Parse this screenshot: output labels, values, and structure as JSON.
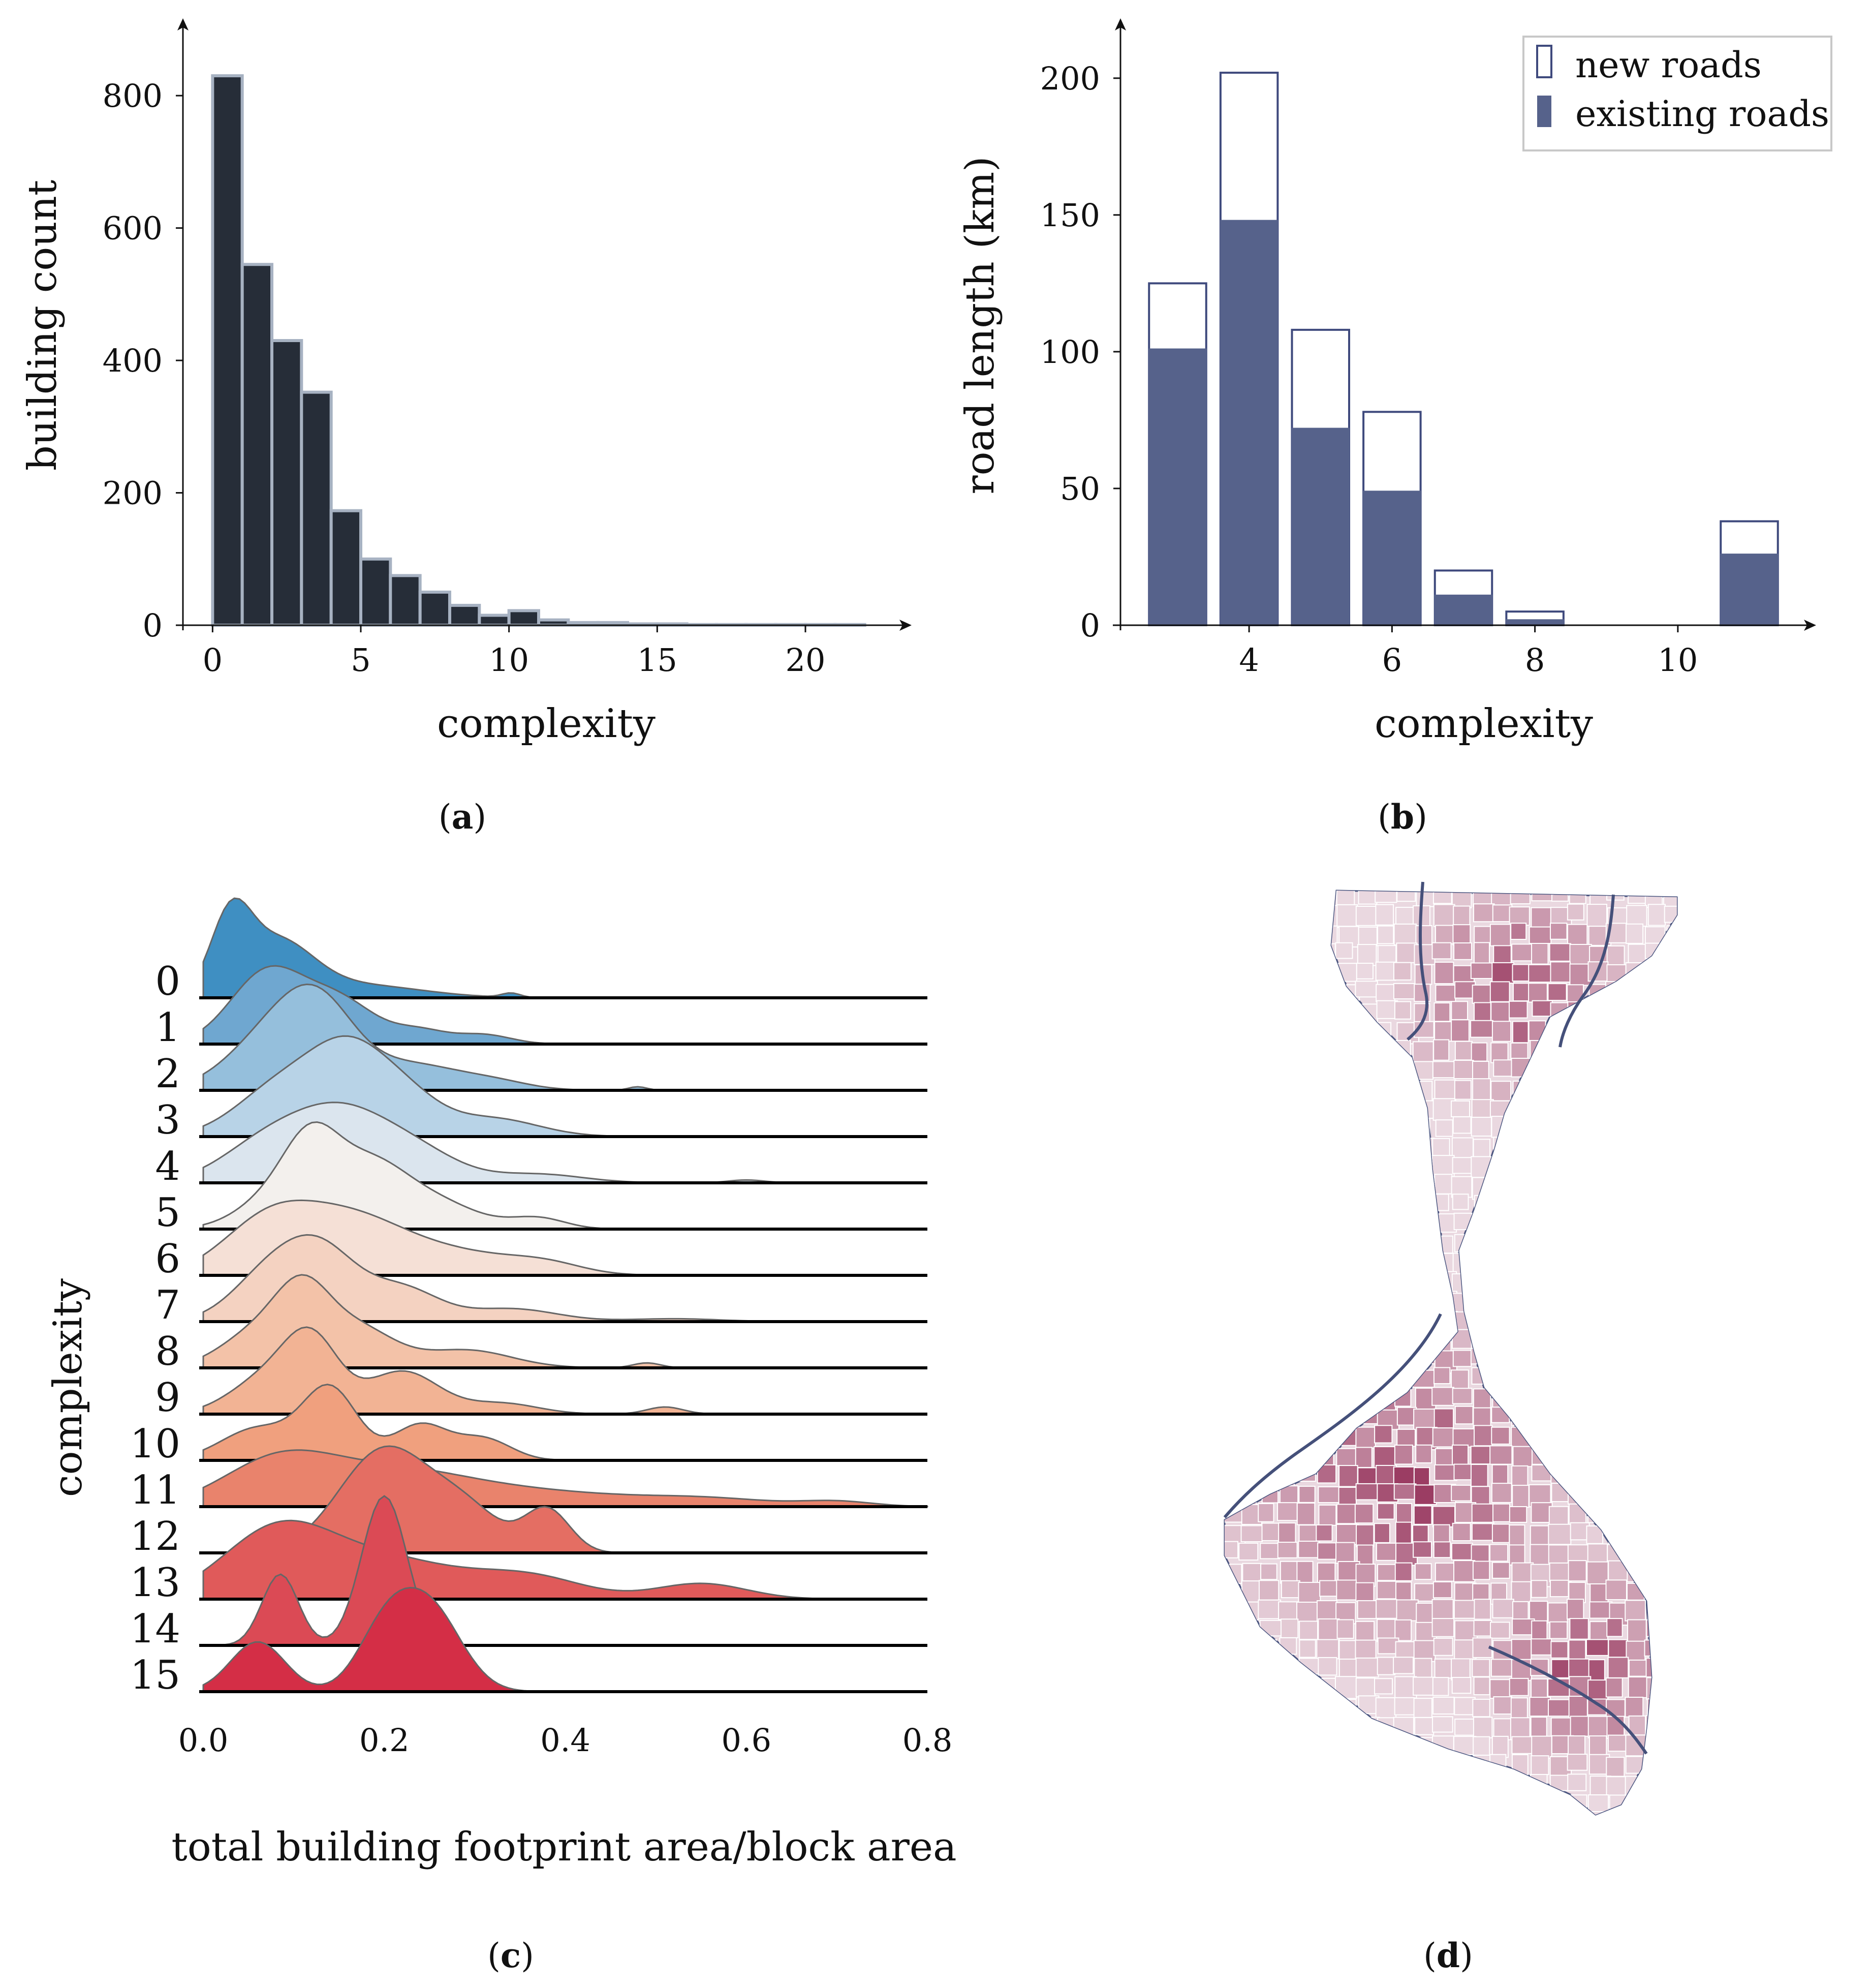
{
  "colors": {
    "hist_fill": "#262d38",
    "hist_edge": "#a7b2c2",
    "existing_roads": "#56628b",
    "new_roads": "#ffffff",
    "bar_edge": "#3f4a7d",
    "map_fill_light": "#ead8e0",
    "map_fill_dark": "#9b3d63",
    "map_edge": "#4b5680",
    "road_line": "#45507a"
  },
  "panels": {
    "a": {
      "open": "(",
      "letter": "a",
      "close": ")"
    },
    "b": {
      "open": "(",
      "letter": "b",
      "close": ")"
    },
    "c": {
      "open": "(",
      "letter": "c",
      "close": ")"
    },
    "d": {
      "open": "(",
      "letter": "d",
      "close": ")"
    }
  },
  "chart_data": [
    {
      "id": "a",
      "type": "bar",
      "xlabel": "complexity",
      "ylabel": "building count",
      "bin_width": 1,
      "bin_starts": [
        0,
        1,
        2,
        3,
        4,
        5,
        6,
        7,
        8,
        9,
        10,
        11,
        12,
        13,
        14,
        15,
        16,
        17,
        18,
        19,
        20,
        21
      ],
      "values": [
        830,
        545,
        430,
        352,
        173,
        100,
        75,
        50,
        30,
        15,
        22,
        8,
        4,
        4,
        2,
        2,
        1,
        1,
        1,
        1,
        1,
        1
      ],
      "xlim": [
        -1,
        23
      ],
      "ylim": [
        0,
        860
      ],
      "xticks": [
        0,
        5,
        10,
        15,
        20
      ],
      "yticks": [
        0,
        200,
        400,
        600,
        800
      ]
    },
    {
      "id": "b",
      "type": "bar",
      "stacked": true,
      "xlabel": "complexity",
      "ylabel": "road length (km)",
      "categories": [
        3,
        4,
        5,
        6,
        7,
        8,
        11
      ],
      "series": [
        {
          "name": "existing roads",
          "values": [
            101,
            148,
            72,
            49,
            11,
            2,
            26
          ]
        },
        {
          "name": "new roads",
          "values": [
            24,
            54,
            36,
            29,
            9,
            3,
            12
          ]
        }
      ],
      "legend": [
        "new roads",
        "existing roads"
      ],
      "legend_position": "top-right",
      "xlim": [
        2.2,
        11.8
      ],
      "ylim": [
        0,
        210
      ],
      "xticks": [
        4,
        6,
        8,
        10
      ],
      "yticks": [
        0,
        50,
        100,
        150,
        200
      ]
    },
    {
      "id": "c",
      "type": "area",
      "subtype": "ridgeline",
      "xlabel": "total building footprint area/block area",
      "ylabel": "complexity",
      "xlim": [
        0.0,
        0.8
      ],
      "xticks": [
        "0.0",
        "0.2",
        "0.4",
        "0.6",
        "0.8"
      ],
      "rows": [
        {
          "label": "0",
          "color": "#3f8fc2",
          "peaks": [
            [
              0.03,
              0.022,
              1.0
            ],
            [
              0.08,
              0.04,
              0.75
            ],
            [
              0.17,
              0.07,
              0.18
            ],
            [
              0.34,
              0.01,
              0.06
            ]
          ]
        },
        {
          "label": "1",
          "color": "#6fa7d0",
          "peaks": [
            [
              0.07,
              0.04,
              1.0
            ],
            [
              0.15,
              0.04,
              0.6
            ],
            [
              0.24,
              0.03,
              0.18
            ],
            [
              0.31,
              0.03,
              0.13
            ]
          ]
        },
        {
          "label": "2",
          "color": "#95bfdc",
          "peaks": [
            [
              0.08,
              0.05,
              0.8
            ],
            [
              0.13,
              0.04,
              0.9
            ],
            [
              0.23,
              0.05,
              0.35
            ],
            [
              0.32,
              0.04,
              0.12
            ],
            [
              0.48,
              0.01,
              0.05
            ]
          ]
        },
        {
          "label": "3",
          "color": "#b8d3e7",
          "peaks": [
            [
              0.09,
              0.05,
              0.75
            ],
            [
              0.16,
              0.04,
              0.95
            ],
            [
              0.22,
              0.04,
              0.55
            ],
            [
              0.32,
              0.05,
              0.25
            ]
          ]
        },
        {
          "label": "4",
          "color": "#dbe5ee",
          "peaks": [
            [
              0.07,
              0.05,
              0.55
            ],
            [
              0.15,
              0.05,
              0.85
            ],
            [
              0.23,
              0.05,
              0.45
            ],
            [
              0.37,
              0.05,
              0.12
            ],
            [
              0.6,
              0.02,
              0.04
            ]
          ]
        },
        {
          "label": "5",
          "color": "#f3f0ed",
          "peaks": [
            [
              0.08,
              0.04,
              0.45
            ],
            [
              0.12,
              0.03,
              0.95
            ],
            [
              0.18,
              0.04,
              0.8
            ],
            [
              0.25,
              0.05,
              0.4
            ],
            [
              0.37,
              0.03,
              0.15
            ]
          ]
        },
        {
          "label": "6",
          "color": "#f5e0d6",
          "peaks": [
            [
              0.07,
              0.05,
              0.7
            ],
            [
              0.16,
              0.06,
              0.75
            ],
            [
              0.28,
              0.07,
              0.3
            ],
            [
              0.38,
              0.04,
              0.12
            ]
          ]
        },
        {
          "label": "7",
          "color": "#f4d2c1",
          "peaks": [
            [
              0.07,
              0.04,
              0.6
            ],
            [
              0.13,
              0.04,
              0.95
            ],
            [
              0.22,
              0.04,
              0.45
            ],
            [
              0.34,
              0.05,
              0.18
            ],
            [
              0.52,
              0.05,
              0.04
            ]
          ]
        },
        {
          "label": "8",
          "color": "#f3c2a8",
          "peaks": [
            [
              0.06,
              0.04,
              0.5
            ],
            [
              0.11,
              0.03,
              0.9
            ],
            [
              0.17,
              0.04,
              0.55
            ],
            [
              0.29,
              0.05,
              0.25
            ],
            [
              0.49,
              0.015,
              0.07
            ]
          ]
        },
        {
          "label": "9",
          "color": "#f2b394",
          "peaks": [
            [
              0.07,
              0.04,
              0.5
            ],
            [
              0.12,
              0.03,
              0.95
            ],
            [
              0.22,
              0.04,
              0.6
            ],
            [
              0.33,
              0.04,
              0.15
            ],
            [
              0.51,
              0.02,
              0.1
            ]
          ]
        },
        {
          "label": "10",
          "color": "#f0a07e",
          "peaks": [
            [
              0.06,
              0.04,
              0.45
            ],
            [
              0.14,
              0.03,
              1.0
            ],
            [
              0.24,
              0.03,
              0.5
            ],
            [
              0.31,
              0.03,
              0.3
            ]
          ]
        },
        {
          "label": "11",
          "color": "#e9836c",
          "peaks": [
            [
              0.08,
              0.06,
              0.55
            ],
            [
              0.2,
              0.09,
              0.5
            ],
            [
              0.38,
              0.1,
              0.18
            ],
            [
              0.56,
              0.07,
              0.1
            ],
            [
              0.7,
              0.04,
              0.07
            ]
          ]
        },
        {
          "label": "12",
          "color": "#e46e63",
          "peaks": [
            [
              0.2,
              0.05,
              1.45
            ],
            [
              0.29,
              0.04,
              0.55
            ],
            [
              0.38,
              0.025,
              0.6
            ]
          ]
        },
        {
          "label": "13",
          "color": "#e05a5a",
          "peaks": [
            [
              0.08,
              0.06,
              0.9
            ],
            [
              0.2,
              0.08,
              0.55
            ],
            [
              0.36,
              0.06,
              0.3
            ],
            [
              0.55,
              0.05,
              0.22
            ]
          ]
        },
        {
          "label": "14",
          "color": "#db4a55",
          "peaks": [
            [
              0.085,
              0.02,
              1.0
            ],
            [
              0.2,
              0.025,
              2.1
            ]
          ]
        },
        {
          "label": "15",
          "color": "#d42e46",
          "peaks": [
            [
              0.06,
              0.03,
              0.7
            ],
            [
              0.2,
              0.03,
              0.8
            ],
            [
              0.25,
              0.035,
              1.15
            ]
          ]
        }
      ]
    }
  ]
}
